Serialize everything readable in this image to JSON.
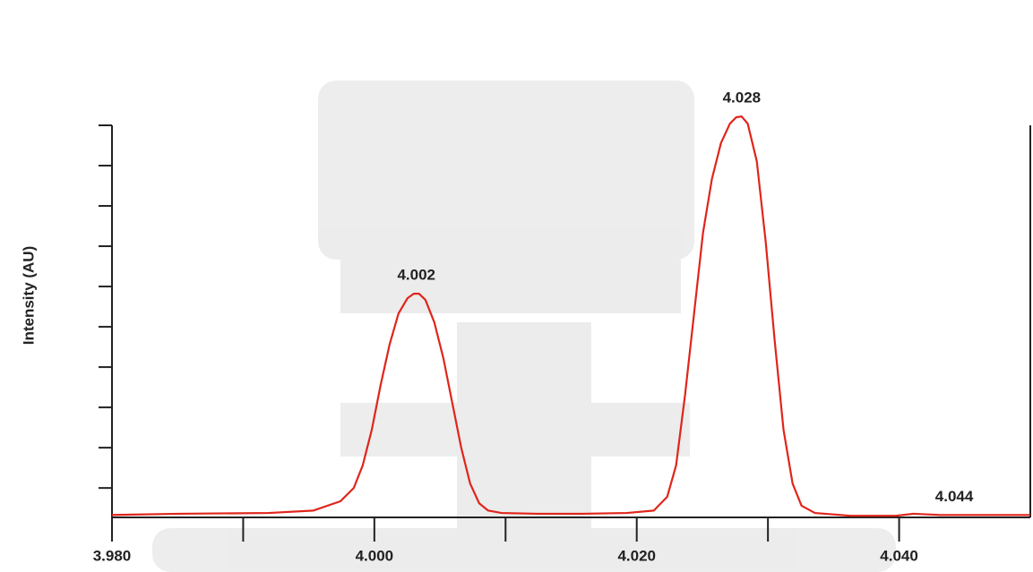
{
  "chart_data": {
    "type": "line",
    "y_label": "Intensity (AU)",
    "color": "#e0251b",
    "xlim": [
      3.98,
      4.05
    ],
    "ylim": [
      0.27,
      10
    ],
    "xticks": [
      {
        "value": 3.98,
        "label": "3.980"
      },
      {
        "value": 3.99,
        "label": null
      },
      {
        "value": 4.0,
        "label": "4.000"
      },
      {
        "value": 4.01,
        "label": null
      },
      {
        "value": 4.02,
        "label": "4.020"
      },
      {
        "value": 4.03,
        "label": null
      },
      {
        "value": 4.04,
        "label": "4.040"
      }
    ],
    "yticks": [
      {
        "value": 1,
        "label": null
      },
      {
        "value": 2,
        "label": null
      },
      {
        "value": 3,
        "label": null
      },
      {
        "value": 4,
        "label": null
      },
      {
        "value": 5,
        "label": null
      },
      {
        "value": 6,
        "label": null
      },
      {
        "value": 7,
        "label": null
      },
      {
        "value": 8,
        "label": null
      },
      {
        "value": 9,
        "label": null
      },
      {
        "value": 10,
        "label": null
      }
    ],
    "x": [
      3.98,
      3.98512,
      3.99195,
      3.99536,
      3.99741,
      3.99843,
      3.99911,
      3.9998,
      4.00048,
      4.00116,
      4.00184,
      4.00253,
      4.003,
      4.00341,
      4.00389,
      4.00457,
      4.00526,
      4.00594,
      4.00662,
      4.0073,
      4.00799,
      4.00867,
      4.00969,
      4.01242,
      4.01584,
      4.01925,
      4.0213,
      4.02232,
      4.023,
      4.02369,
      4.02437,
      4.02505,
      4.02573,
      4.02642,
      4.0271,
      4.02758,
      4.02799,
      4.02846,
      4.02915,
      4.02983,
      4.03051,
      4.03119,
      4.03188,
      4.03256,
      4.03358,
      4.03631,
      4.03973,
      4.04109,
      4.04314,
      4.04655,
      4.04997
    ],
    "values": [
      0.33,
      0.36,
      0.38,
      0.44,
      0.67,
      1.0,
      1.56,
      2.44,
      3.56,
      4.56,
      5.33,
      5.71,
      5.82,
      5.82,
      5.67,
      5.11,
      4.22,
      3.11,
      2.0,
      1.11,
      0.62,
      0.44,
      0.38,
      0.36,
      0.36,
      0.38,
      0.44,
      0.78,
      1.56,
      3.33,
      5.33,
      7.33,
      8.67,
      9.56,
      10.04,
      10.2,
      10.22,
      10.04,
      9.11,
      7.11,
      4.67,
      2.44,
      1.11,
      0.56,
      0.38,
      0.31,
      0.31,
      0.36,
      0.33,
      0.33,
      0.33
    ],
    "annotations": [
      {
        "text": "4.002",
        "x": 4.0032,
        "y": 5.82
      },
      {
        "text": "4.028",
        "x": 4.028,
        "y": 10.22
      },
      {
        "text": "4.044",
        "x": 4.0442,
        "y": 0.33
      }
    ]
  }
}
